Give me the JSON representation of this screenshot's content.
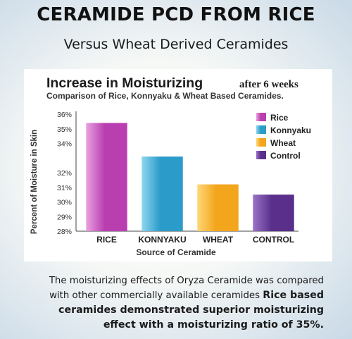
{
  "slide": {
    "title": "CERAMIDE PCD FROM RICE",
    "subtitle": "Versus Wheat Derived Ceramides"
  },
  "caption": {
    "line1": "The moisturizing effects of Oryza Ceramide was compared",
    "line2_plain": "with other commercially available ceramides ",
    "line2_bold": "Rice based",
    "line3_bold": "ceramides demonstrated superior moisturizing",
    "line4_bold": "effect with a moisturizing ratio of 35%."
  },
  "chart_data": {
    "type": "bar",
    "title": "Increase in Moisturizing",
    "title_suffix": "after 6 weeks",
    "subtitle": "Comparison of Rice, Konnyaku & Wheat Based Ceramides.",
    "xlabel": "Source of Ceramide",
    "ylabel": "Percent of Moisture in Skin",
    "categories": [
      "RICE",
      "KONNYAKU",
      "WHEAT",
      "CONTROL"
    ],
    "values": [
      35.4,
      33.1,
      31.2,
      30.5
    ],
    "legend_labels": [
      "Rice",
      "Konnyaku",
      "Wheat",
      "Control"
    ],
    "ytick_labels": [
      "28%",
      "29%",
      "30%",
      "31%",
      "32%",
      "34%",
      "35%",
      "36%"
    ],
    "ytick_values": [
      28,
      29,
      30,
      31,
      32,
      34,
      35,
      36
    ],
    "ylim": [
      28,
      36
    ],
    "legend_position": "top-right",
    "grid": false,
    "colors": [
      "#b93fb0",
      "#2b9bc9",
      "#f3a51c",
      "#5a2f8c"
    ],
    "colors_light": [
      "#e9a2e0",
      "#8fd6f0",
      "#ffd778",
      "#9a74c8"
    ]
  }
}
